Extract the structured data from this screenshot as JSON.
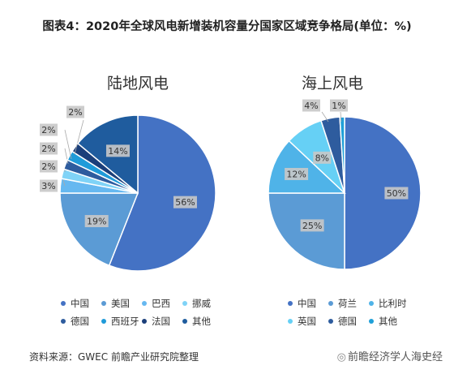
{
  "title": "图表4：2020年全球风电新增装机容量分国家区域竞争格局(单位：%)",
  "source": "资料来源：GWEC 前瞻产业研究院整理",
  "watermark": "前瞻经济学人海史经",
  "chart_data": [
    {
      "type": "pie",
      "title": "陆地风电",
      "unit": "%",
      "slices": [
        {
          "label": "中国",
          "value": 56,
          "color": "#4472C4"
        },
        {
          "label": "美国",
          "value": 19,
          "color": "#5B9BD5"
        },
        {
          "label": "巴西",
          "value": 3,
          "color": "#66B8F0"
        },
        {
          "label": "挪威",
          "value": 2,
          "color": "#7FD3F7"
        },
        {
          "label": "德国",
          "value": 2,
          "color": "#2E5C9E"
        },
        {
          "label": "西班牙",
          "value": 2,
          "color": "#1F9BD9"
        },
        {
          "label": "法国",
          "value": 2,
          "color": "#1B3F7A"
        },
        {
          "label": "其他",
          "value": 14,
          "color": "#1F5C9E"
        }
      ],
      "data_labels": [
        "56%",
        "19%",
        "3%",
        "2%",
        "2%",
        "2%",
        "2%",
        "14%"
      ]
    },
    {
      "type": "pie",
      "title": "海上风电",
      "unit": "%",
      "slices": [
        {
          "label": "中国",
          "value": 50,
          "color": "#4472C4"
        },
        {
          "label": "荷兰",
          "value": 25,
          "color": "#5B9BD5"
        },
        {
          "label": "比利时",
          "value": 12,
          "color": "#4FB3E8"
        },
        {
          "label": "英国",
          "value": 8,
          "color": "#66D0F5"
        },
        {
          "label": "德国",
          "value": 4,
          "color": "#2E5C9E"
        },
        {
          "label": "其他",
          "value": 1,
          "color": "#1FA0D8"
        }
      ],
      "data_labels": [
        "50%",
        "25%",
        "12%",
        "8%",
        "4%",
        "1%"
      ]
    }
  ]
}
